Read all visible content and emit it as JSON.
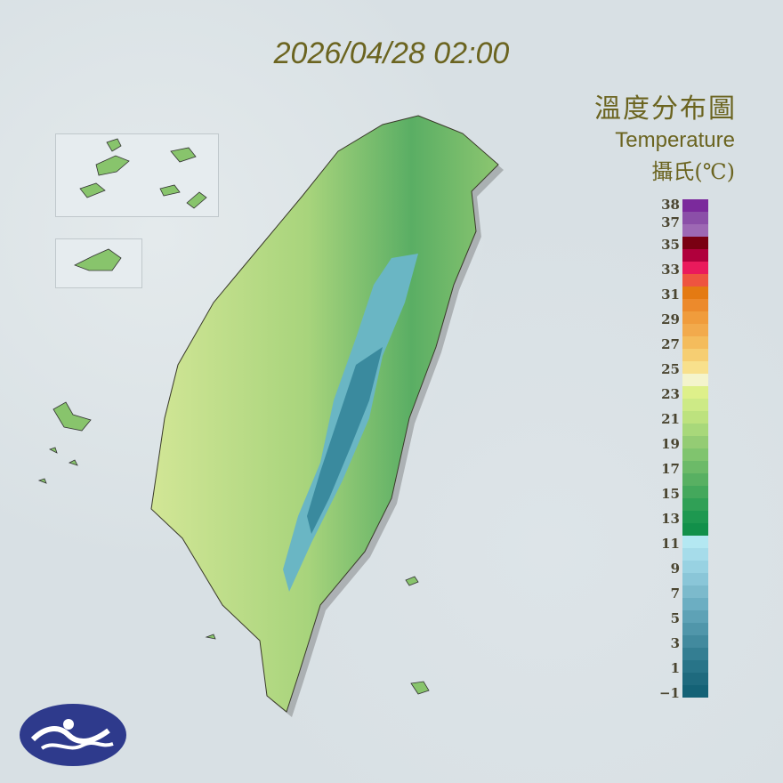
{
  "header": {
    "datetime": "2026/04/28 02:00"
  },
  "title": {
    "zh": "溫度分布圖",
    "en": "Temperature",
    "unit": "攝氏(℃)"
  },
  "legend": {
    "labels": [
      "38",
      "37",
      "35",
      "33",
      "31",
      "29",
      "27",
      "25",
      "23",
      "21",
      "19",
      "17",
      "15",
      "13",
      "11",
      "9",
      "7",
      "5",
      "3",
      "1",
      "−1"
    ],
    "colors": [
      "#7b2a9c",
      "#8b4fa8",
      "#9d68b4",
      "#7a0012",
      "#b0003c",
      "#ea1a5c",
      "#ee5440",
      "#e47a12",
      "#ec8a2c",
      "#f09c3c",
      "#f2aa4c",
      "#f4bc5c",
      "#f6ce72",
      "#f8e08c",
      "#f4f4cc",
      "#def08a",
      "#cdea86",
      "#bde27e",
      "#a8d87a",
      "#94cc74",
      "#80c46e",
      "#6cba68",
      "#58b062",
      "#44a85c",
      "#30a056",
      "#1e9850",
      "#12904a",
      "#b4e8f2",
      "#a6dcea",
      "#98d2e2",
      "#8ac6d8",
      "#7cbacc",
      "#6caec2",
      "#5ea2b6",
      "#5096aa",
      "#428a9e",
      "#347e92",
      "#287488",
      "#1e6a7e",
      "#146276"
    ]
  },
  "map": {
    "land_low": "#c8e088",
    "land_mid": "#7cc06a",
    "mountain": "#4a9cb0",
    "peak": "#2a7488"
  },
  "logo": {
    "color": "#2e3a8c"
  }
}
